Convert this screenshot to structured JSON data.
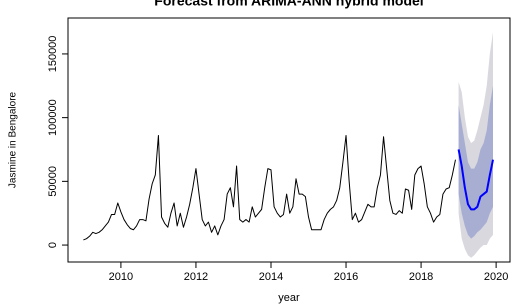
{
  "chart_data": {
    "type": "line",
    "title": "Forecast from ARIMA-ANN hybrid model",
    "xlabel": "year",
    "ylabel": "Jasmine in Bengalore",
    "xlim": [
      2008.59,
      2020.37
    ],
    "ylim": [
      -13300,
      178200
    ],
    "xticks": [
      2010,
      2012,
      2014,
      2016,
      2018,
      2020
    ],
    "yticks": [
      0,
      50000,
      100000,
      150000
    ],
    "bands": [
      {
        "color": "#d8d8de",
        "x": [
          2019,
          2019.083,
          2019.167,
          2019.25,
          2019.333,
          2019.417,
          2019.5,
          2019.583,
          2019.667,
          2019.75,
          2019.833,
          2019.917
        ],
        "lower": [
          25000,
          5000,
          -3000,
          -8000,
          -10000,
          -8000,
          -5000,
          -2000,
          0,
          0,
          5000,
          8000
        ],
        "upper": [
          128000,
          120000,
          100000,
          85000,
          80000,
          82000,
          90000,
          100000,
          110000,
          125000,
          150000,
          167000
        ]
      },
      {
        "color": "#a8aed2",
        "x": [
          2019,
          2019.083,
          2019.167,
          2019.25,
          2019.333,
          2019.417,
          2019.5,
          2019.583,
          2019.667,
          2019.75,
          2019.833,
          2019.917
        ],
        "lower": [
          40000,
          25000,
          15000,
          8000,
          5000,
          7000,
          10000,
          12000,
          15000,
          18000,
          25000,
          30000
        ],
        "upper": [
          110000,
          95000,
          80000,
          65000,
          60000,
          60000,
          65000,
          75000,
          80000,
          90000,
          110000,
          125000
        ]
      }
    ],
    "series": [
      {
        "color": "#000000",
        "width": 1,
        "x": [
          2009,
          2009.083,
          2009.167,
          2009.25,
          2009.333,
          2009.417,
          2009.5,
          2009.583,
          2009.667,
          2009.75,
          2009.833,
          2009.917,
          2010,
          2010.083,
          2010.167,
          2010.25,
          2010.333,
          2010.417,
          2010.5,
          2010.583,
          2010.667,
          2010.75,
          2010.833,
          2010.917,
          2011,
          2011.083,
          2011.167,
          2011.25,
          2011.333,
          2011.417,
          2011.5,
          2011.583,
          2011.667,
          2011.75,
          2011.833,
          2011.917,
          2012,
          2012.083,
          2012.167,
          2012.25,
          2012.333,
          2012.417,
          2012.5,
          2012.583,
          2012.667,
          2012.75,
          2012.833,
          2012.917,
          2013,
          2013.083,
          2013.167,
          2013.25,
          2013.333,
          2013.417,
          2013.5,
          2013.583,
          2013.667,
          2013.75,
          2013.833,
          2013.917,
          2014,
          2014.083,
          2014.167,
          2014.25,
          2014.333,
          2014.417,
          2014.5,
          2014.583,
          2014.667,
          2014.75,
          2014.833,
          2014.917,
          2015,
          2015.083,
          2015.167,
          2015.25,
          2015.333,
          2015.417,
          2015.5,
          2015.583,
          2015.667,
          2015.75,
          2015.833,
          2015.917,
          2016,
          2016.083,
          2016.167,
          2016.25,
          2016.333,
          2016.417,
          2016.5,
          2016.583,
          2016.667,
          2016.75,
          2016.833,
          2016.917,
          2017,
          2017.083,
          2017.167,
          2017.25,
          2017.333,
          2017.417,
          2017.5,
          2017.583,
          2017.667,
          2017.75,
          2017.833,
          2017.917,
          2018,
          2018.083,
          2018.167,
          2018.25,
          2018.333,
          2018.417,
          2018.5,
          2018.583,
          2018.667,
          2018.75,
          2018.833,
          2018.917
        ],
        "values": [
          4000,
          5000,
          7000,
          10000,
          9000,
          10000,
          12000,
          15000,
          18000,
          24000,
          24000,
          33000,
          26000,
          20000,
          16000,
          13000,
          12000,
          15000,
          20000,
          20000,
          19000,
          36000,
          48000,
          55000,
          86000,
          22000,
          17000,
          14000,
          25000,
          33000,
          15000,
          25000,
          14000,
          22000,
          32000,
          45000,
          60000,
          40000,
          20000,
          15000,
          18000,
          10000,
          15000,
          8000,
          15000,
          20000,
          40000,
          45000,
          30000,
          62000,
          20000,
          18000,
          20000,
          18000,
          30000,
          22000,
          25000,
          28000,
          45000,
          60000,
          59000,
          30000,
          25000,
          22000,
          24000,
          40000,
          25000,
          30000,
          52000,
          40000,
          40000,
          38000,
          22000,
          12000,
          12000,
          12000,
          12000,
          20000,
          25000,
          28000,
          30000,
          35000,
          45000,
          65000,
          86000,
          50000,
          20000,
          25000,
          18000,
          20000,
          26000,
          32000,
          30000,
          30000,
          45000,
          55000,
          85000,
          60000,
          35000,
          25000,
          24000,
          27000,
          25000,
          44000,
          43000,
          28000,
          55000,
          60000,
          62000,
          48000,
          30000,
          25000,
          18000,
          22000,
          24000,
          40000,
          44000,
          45000,
          55000,
          67000
        ]
      },
      {
        "color": "#0000ff",
        "width": 2,
        "x": [
          2019,
          2019.083,
          2019.167,
          2019.25,
          2019.333,
          2019.417,
          2019.5,
          2019.583,
          2019.667,
          2019.75,
          2019.833,
          2019.917
        ],
        "values": [
          75000,
          62000,
          45000,
          32000,
          28000,
          28000,
          30000,
          38000,
          40000,
          42000,
          55000,
          67000
        ]
      }
    ]
  }
}
